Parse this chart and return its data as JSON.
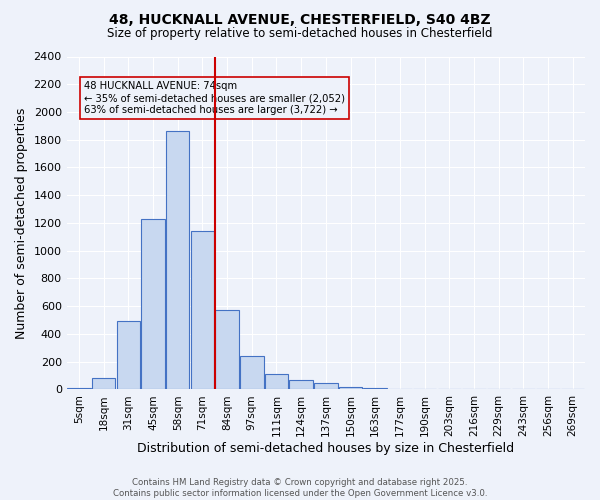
{
  "title1": "48, HUCKNALL AVENUE, CHESTERFIELD, S40 4BZ",
  "title2": "Size of property relative to semi-detached houses in Chesterfield",
  "xlabel": "Distribution of semi-detached houses by size in Chesterfield",
  "ylabel": "Number of semi-detached properties",
  "categories": [
    "5sqm",
    "18sqm",
    "31sqm",
    "45sqm",
    "58sqm",
    "71sqm",
    "84sqm",
    "97sqm",
    "111sqm",
    "124sqm",
    "137sqm",
    "150sqm",
    "163sqm",
    "177sqm",
    "190sqm",
    "203sqm",
    "216sqm",
    "229sqm",
    "243sqm",
    "256sqm",
    "269sqm"
  ],
  "values": [
    10,
    80,
    490,
    1230,
    1860,
    1140,
    575,
    240,
    115,
    70,
    45,
    15,
    10,
    5,
    5,
    0,
    0,
    0,
    0,
    0,
    0
  ],
  "bar_facecolor": "#c8d8f0",
  "bar_edgecolor": "#4472c4",
  "property_size_index": 5,
  "red_line_color": "#cc0000",
  "annotation_text": "48 HUCKNALL AVENUE: 74sqm\n← 35% of semi-detached houses are smaller (2,052)\n63% of semi-detached houses are larger (3,722) →",
  "annotation_box_edgecolor": "#cc0000",
  "ylim": [
    0,
    2400
  ],
  "yticks": [
    0,
    200,
    400,
    600,
    800,
    1000,
    1200,
    1400,
    1600,
    1800,
    2000,
    2200,
    2400
  ],
  "background_color": "#eef2fa",
  "grid_color": "#ffffff",
  "footer_line1": "Contains HM Land Registry data © Crown copyright and database right 2025.",
  "footer_line2": "Contains public sector information licensed under the Open Government Licence v3.0."
}
